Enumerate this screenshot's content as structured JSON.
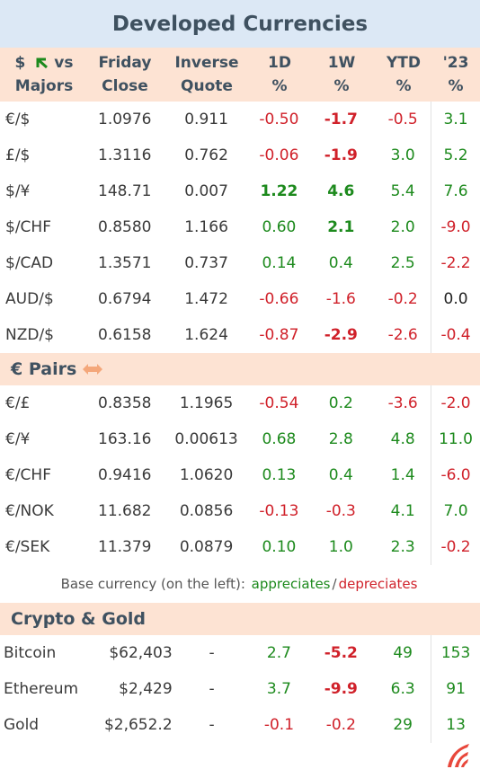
{
  "title": "Developed Currencies",
  "header": {
    "col0_a": "$",
    "col0_b": "vs",
    "col0_c": "Majors",
    "col1_a": "Friday",
    "col1_b": "Close",
    "col2_a": "Inverse",
    "col2_b": "Quote",
    "col3_a": "1D",
    "col3_b": "%",
    "col4_a": "1W",
    "col4_b": "%",
    "col5_a": "YTD",
    "col5_b": "%",
    "col6_a": "'23",
    "col6_b": "%"
  },
  "majors": [
    {
      "pair": "€/$",
      "close": "1.0976",
      "inverse": "0.911",
      "d1": "-0.50",
      "w1": "-1.7",
      "ytd": "-0.5",
      "y23": "3.1"
    },
    {
      "pair": "£/$",
      "close": "1.3116",
      "inverse": "0.762",
      "d1": "-0.06",
      "w1": "-1.9",
      "ytd": "3.0",
      "y23": "5.2"
    },
    {
      "pair": "$/¥",
      "close": "148.71",
      "inverse": "0.007",
      "d1": "1.22",
      "w1": "4.6",
      "ytd": "5.4",
      "y23": "7.6"
    },
    {
      "pair": "$/CHF",
      "close": "0.8580",
      "inverse": "1.166",
      "d1": "0.60",
      "w1": "2.1",
      "ytd": "2.0",
      "y23": "-9.0"
    },
    {
      "pair": "$/CAD",
      "close": "1.3571",
      "inverse": "0.737",
      "d1": "0.14",
      "w1": "0.4",
      "ytd": "2.5",
      "y23": "-2.2"
    },
    {
      "pair": "AUD/$",
      "close": "0.6794",
      "inverse": "1.472",
      "d1": "-0.66",
      "w1": "-1.6",
      "ytd": "-0.2",
      "y23": "0.0"
    },
    {
      "pair": "NZD/$",
      "close": "0.6158",
      "inverse": "1.624",
      "d1": "-0.87",
      "w1": "-2.9",
      "ytd": "-2.6",
      "y23": "-0.4"
    }
  ],
  "euro_section": "€ Pairs",
  "euro": [
    {
      "pair": "€/£",
      "close": "0.8358",
      "inverse": "1.1965",
      "d1": "-0.54",
      "w1": "0.2",
      "ytd": "-3.6",
      "y23": "-2.0"
    },
    {
      "pair": "€/¥",
      "close": "163.16",
      "inverse": "0.00613",
      "d1": "0.68",
      "w1": "2.8",
      "ytd": "4.8",
      "y23": "11.0"
    },
    {
      "pair": "€/CHF",
      "close": "0.9416",
      "inverse": "1.0620",
      "d1": "0.13",
      "w1": "0.4",
      "ytd": "1.4",
      "y23": "-6.0"
    },
    {
      "pair": "€/NOK",
      "close": "11.682",
      "inverse": "0.0856",
      "d1": "-0.13",
      "w1": "-0.3",
      "ytd": "4.1",
      "y23": "7.0"
    },
    {
      "pair": "€/SEK",
      "close": "11.379",
      "inverse": "0.0879",
      "d1": "0.10",
      "w1": "1.0",
      "ytd": "2.3",
      "y23": "-0.2"
    }
  ],
  "note": {
    "prefix": "Base currency (on the left):",
    "appreciates": "appreciates",
    "sep": "/",
    "depreciates": "depreciates"
  },
  "crypto_section": "Crypto & Gold",
  "crypto": [
    {
      "pair": "Bitcoin",
      "close": "$62,403",
      "inverse": "-",
      "d1": "2.7",
      "w1": "-5.2",
      "ytd": "49",
      "y23": "153"
    },
    {
      "pair": "Ethereum",
      "close": "$2,429",
      "inverse": "-",
      "d1": "3.7",
      "w1": "-9.9",
      "ytd": "6.3",
      "y23": "91"
    },
    {
      "pair": "Gold",
      "close": "$2,652.2",
      "inverse": "-",
      "d1": "-0.1",
      "w1": "-0.2",
      "ytd": "29",
      "y23": "13"
    }
  ],
  "colors": {
    "positive": "#1d8a1d",
    "negative": "#d0212a",
    "header_bg": "#fde3d3",
    "title_bg": "#dce8f5"
  }
}
